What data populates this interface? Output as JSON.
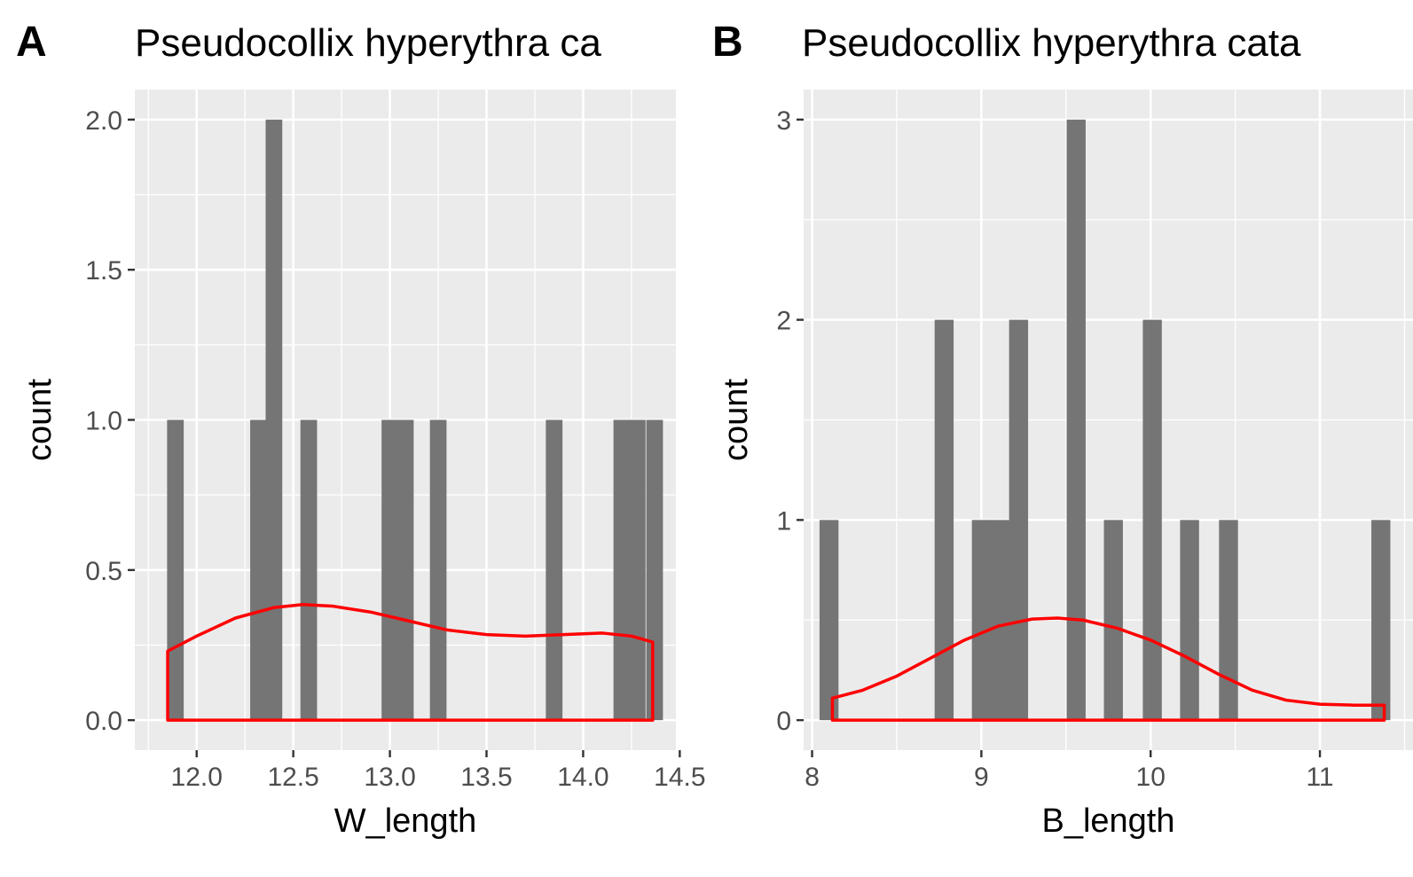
{
  "chart_data": [
    {
      "panel_tag": "A",
      "type": "bar",
      "title": "Pseudocollix hyperythra ca",
      "xlabel": "W_length",
      "ylabel": "count",
      "xlim": [
        11.68,
        14.48
      ],
      "ylim": [
        -0.1,
        2.1
      ],
      "x_ticks": [
        12.0,
        12.5,
        13.0,
        13.5,
        14.0,
        14.5
      ],
      "x_tick_labels": [
        "12.0",
        "12.5",
        "13.0",
        "13.5",
        "14.0",
        "14.5"
      ],
      "y_ticks": [
        0,
        0.5,
        1.0,
        1.5,
        2.0
      ],
      "y_tick_labels": [
        "0.0",
        "0.5",
        "1.0",
        "1.5",
        "2.0"
      ],
      "grid": true,
      "bar_color": "#757575",
      "bin_width": 0.086,
      "bins": [
        {
          "x": 11.89,
          "count": 1
        },
        {
          "x": 12.32,
          "count": 1
        },
        {
          "x": 12.4,
          "count": 2
        },
        {
          "x": 12.58,
          "count": 1
        },
        {
          "x": 13.0,
          "count": 1
        },
        {
          "x": 13.08,
          "count": 1
        },
        {
          "x": 13.25,
          "count": 1
        },
        {
          "x": 13.85,
          "count": 1
        },
        {
          "x": 14.2,
          "count": 1
        },
        {
          "x": 14.28,
          "count": 1
        },
        {
          "x": 14.37,
          "count": 1
        }
      ],
      "density_color": "#ff0000",
      "density": {
        "x": [
          11.85,
          12.0,
          12.2,
          12.4,
          12.55,
          12.7,
          12.9,
          13.1,
          13.3,
          13.5,
          13.7,
          13.9,
          14.1,
          14.25,
          14.36
        ],
        "y": [
          0.23,
          0.28,
          0.34,
          0.375,
          0.385,
          0.38,
          0.36,
          0.33,
          0.3,
          0.285,
          0.28,
          0.285,
          0.29,
          0.28,
          0.26
        ]
      }
    },
    {
      "panel_tag": "B",
      "type": "bar",
      "title": "Pseudocollix hyperythra cata",
      "xlabel": "B_length",
      "ylabel": "count",
      "xlim": [
        7.95,
        11.55
      ],
      "ylim": [
        -0.15,
        3.15
      ],
      "x_ticks": [
        8,
        9,
        10,
        11
      ],
      "x_tick_labels": [
        "8",
        "9",
        "10",
        "11"
      ],
      "y_ticks": [
        0,
        1,
        2,
        3
      ],
      "y_tick_labels": [
        "0",
        "1",
        "2",
        "3"
      ],
      "grid": true,
      "bar_color": "#757575",
      "bin_width": 0.112,
      "bins": [
        {
          "x": 8.1,
          "count": 1
        },
        {
          "x": 8.78,
          "count": 2
        },
        {
          "x": 9.0,
          "count": 1
        },
        {
          "x": 9.11,
          "count": 1
        },
        {
          "x": 9.22,
          "count": 2
        },
        {
          "x": 9.56,
          "count": 3
        },
        {
          "x": 9.78,
          "count": 1
        },
        {
          "x": 10.01,
          "count": 2
        },
        {
          "x": 10.23,
          "count": 1
        },
        {
          "x": 10.46,
          "count": 1
        },
        {
          "x": 11.36,
          "count": 1
        }
      ],
      "density_color": "#ff0000",
      "density": {
        "x": [
          8.12,
          8.3,
          8.5,
          8.7,
          8.9,
          9.1,
          9.3,
          9.45,
          9.6,
          9.8,
          10.0,
          10.2,
          10.4,
          10.6,
          10.8,
          11.0,
          11.2,
          11.38
        ],
        "y": [
          0.11,
          0.15,
          0.22,
          0.31,
          0.4,
          0.47,
          0.505,
          0.51,
          0.5,
          0.46,
          0.4,
          0.32,
          0.23,
          0.15,
          0.1,
          0.08,
          0.075,
          0.075
        ]
      }
    }
  ]
}
